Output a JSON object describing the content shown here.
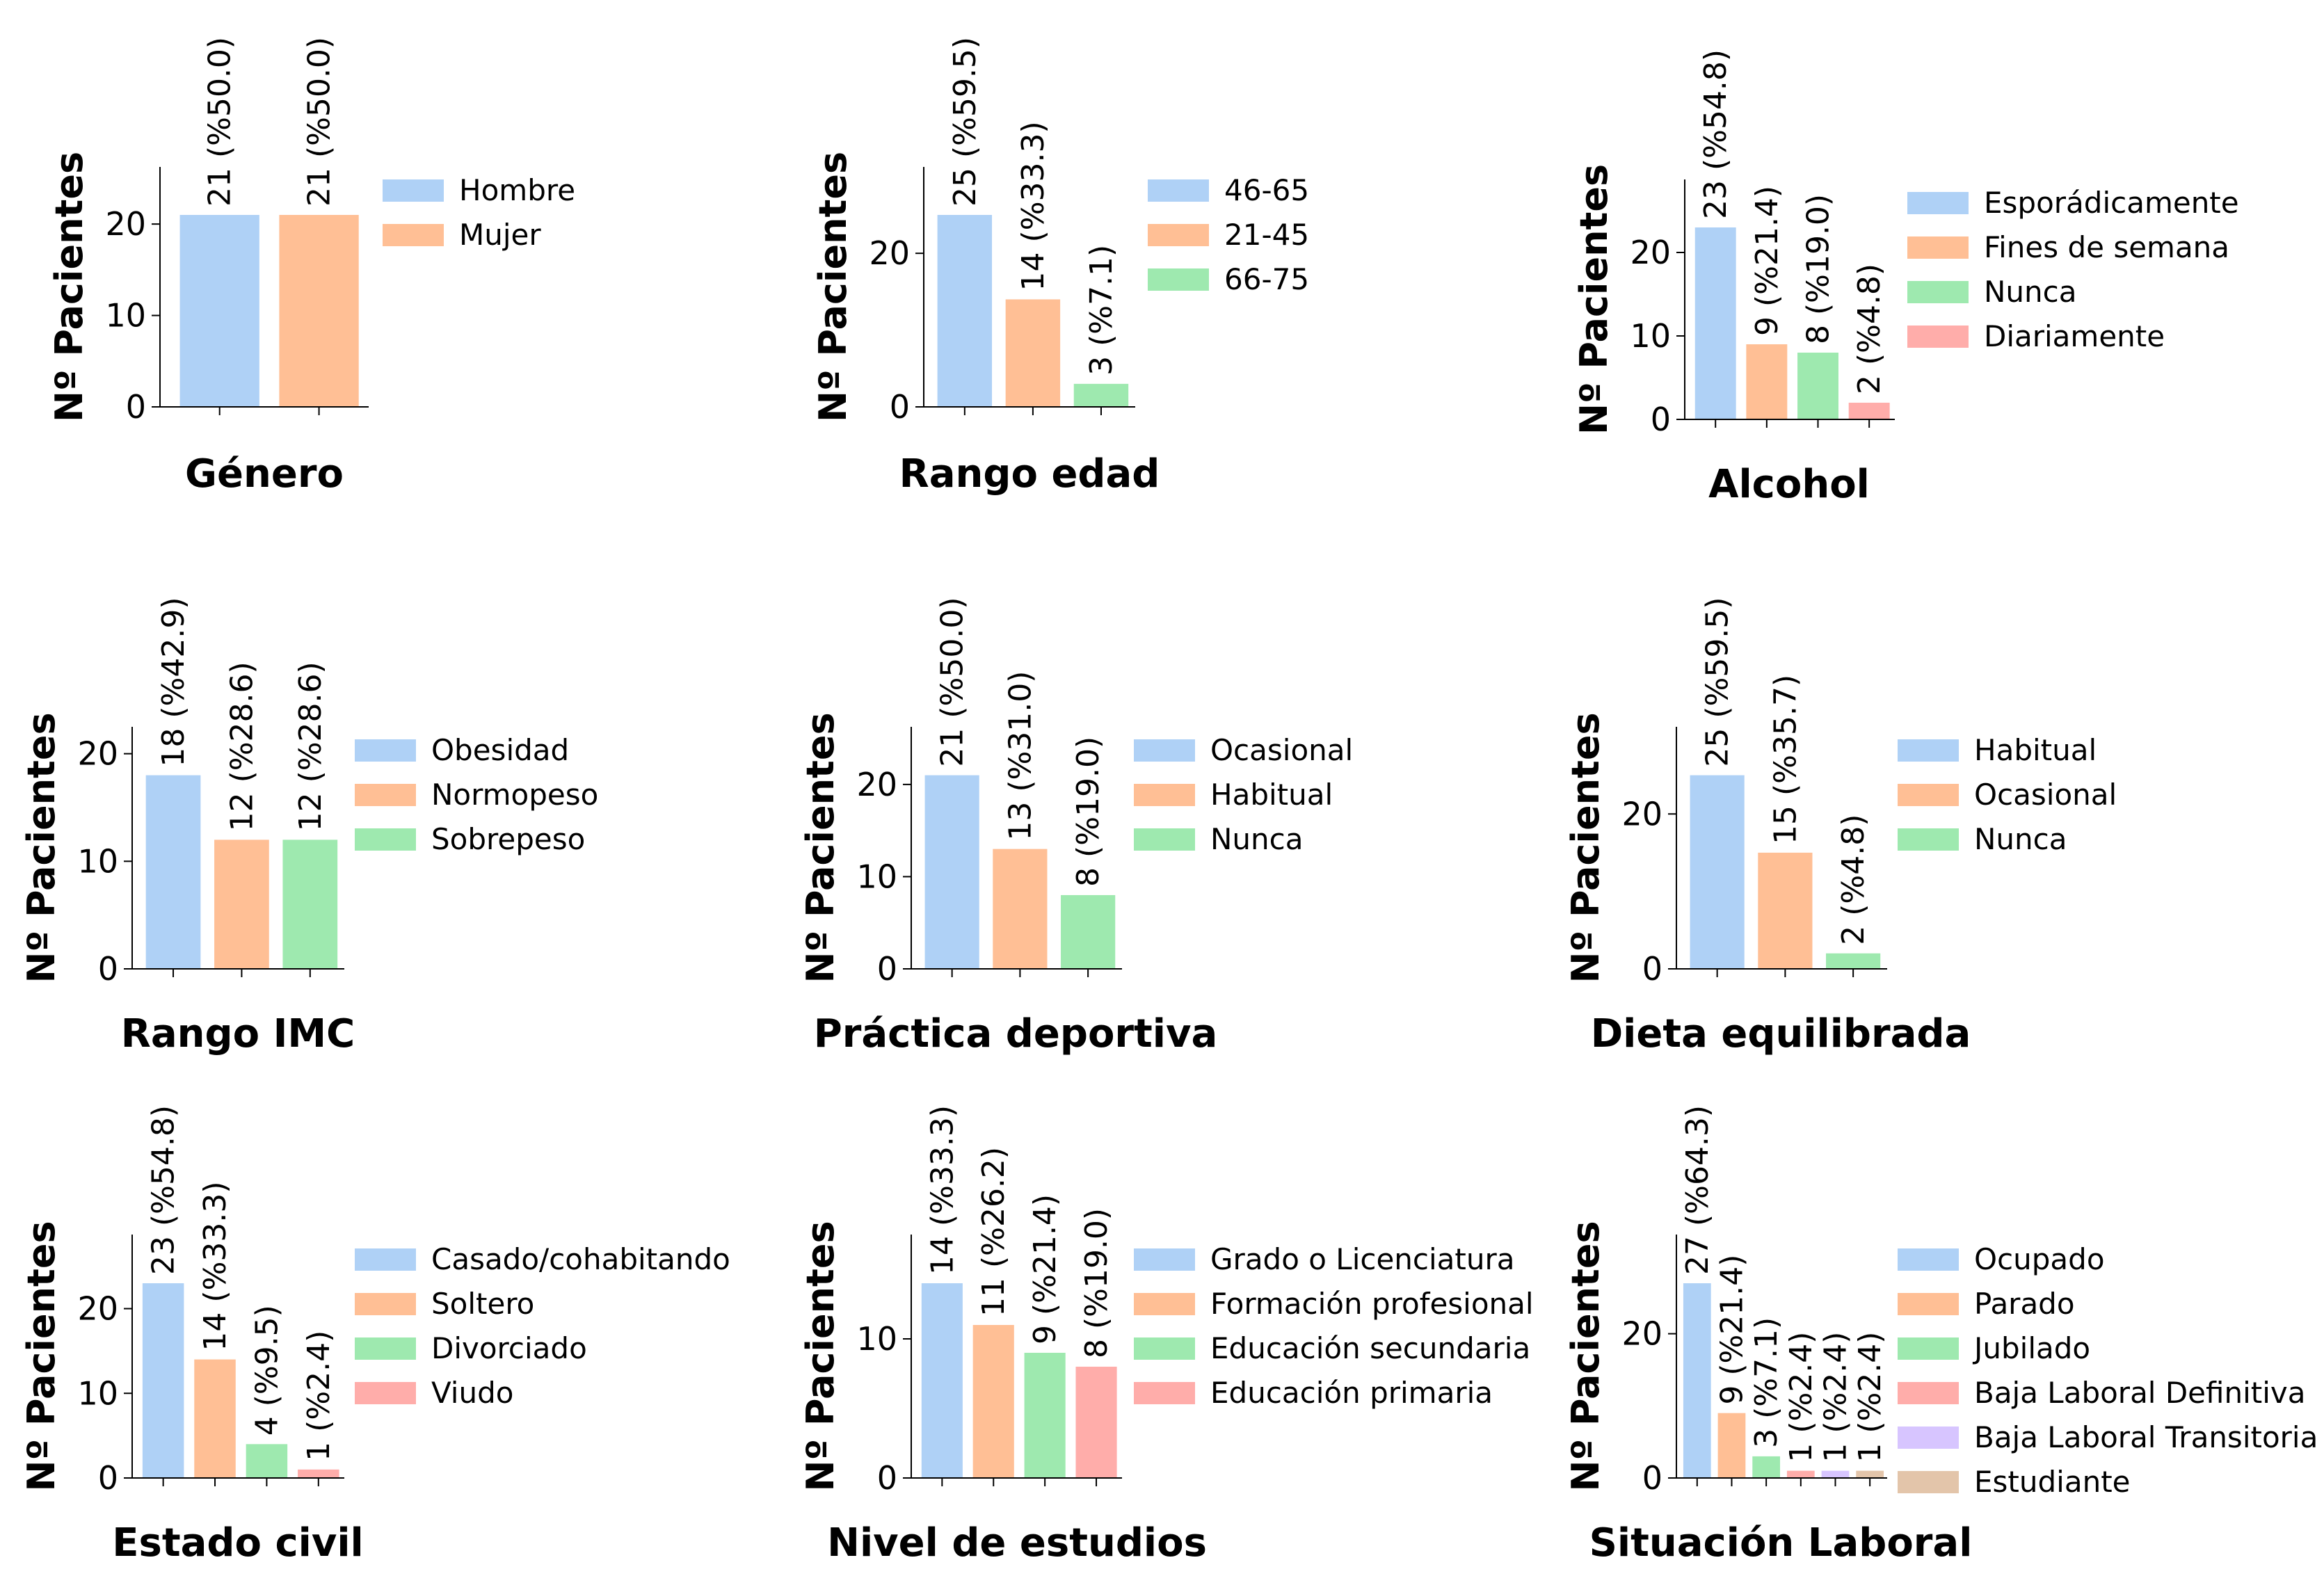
{
  "palette": [
    "#a1c9f4",
    "#ffb482",
    "#8de5a1",
    "#ff9f9b",
    "#d0bbff",
    "#debb9b"
  ],
  "chart_data": [
    {
      "type": "bar",
      "xlabel": "Género",
      "ylabel": "Nº Pacientes",
      "ylim": [
        0,
        26.25
      ],
      "yticks": [
        0,
        10,
        20
      ],
      "categories": [
        "Hombre",
        "Mujer"
      ],
      "values": [
        21,
        21
      ],
      "labels": [
        "21 (%50.0)",
        "21 (%50.0)"
      ],
      "legend": "right"
    },
    {
      "type": "bar",
      "xlabel": "Rango edad",
      "ylabel": "Nº Pacientes",
      "ylim": [
        0,
        31.25
      ],
      "yticks": [
        0,
        20
      ],
      "categories": [
        "46-65",
        "21-45",
        "66-75"
      ],
      "values": [
        25,
        14,
        3
      ],
      "labels": [
        "25 (%59.5)",
        "14 (%33.3)",
        "3 (%7.1)"
      ],
      "legend": "right"
    },
    {
      "type": "bar",
      "xlabel": "Alcohol",
      "ylabel": "Nº Pacientes",
      "ylim": [
        0,
        28.75
      ],
      "yticks": [
        0,
        10,
        20
      ],
      "categories": [
        "Esporádicamente",
        "Fines de semana",
        "Nunca",
        "Diariamente"
      ],
      "values": [
        23,
        9,
        8,
        2
      ],
      "labels": [
        "23 (%54.8)",
        "9 (%21.4)",
        "8 (%19.0)",
        "2 (%4.8)"
      ],
      "legend": "right"
    },
    {
      "type": "bar",
      "xlabel": "Rango IMC",
      "ylabel": "Nº Pacientes",
      "ylim": [
        0,
        22.5
      ],
      "yticks": [
        0,
        10,
        20
      ],
      "categories": [
        "Obesidad",
        "Normopeso",
        "Sobrepeso"
      ],
      "values": [
        18,
        12,
        12
      ],
      "labels": [
        "18 (%42.9)",
        "12 (%28.6)",
        "12 (%28.6)"
      ],
      "legend": "right"
    },
    {
      "type": "bar",
      "xlabel": "Práctica deportiva",
      "ylabel": "Nº Pacientes",
      "ylim": [
        0,
        26.25
      ],
      "yticks": [
        0,
        10,
        20
      ],
      "categories": [
        "Ocasional",
        "Habitual",
        "Nunca"
      ],
      "values": [
        21,
        13,
        8
      ],
      "labels": [
        "21 (%50.0)",
        "13 (%31.0)",
        "8 (%19.0)"
      ],
      "legend": "right"
    },
    {
      "type": "bar",
      "xlabel": "Dieta equilibrada",
      "ylabel": "Nº Pacientes",
      "ylim": [
        0,
        31.25
      ],
      "yticks": [
        0,
        20
      ],
      "categories": [
        "Habitual",
        "Ocasional",
        "Nunca"
      ],
      "values": [
        25,
        15,
        2
      ],
      "labels": [
        "25 (%59.5)",
        "15 (%35.7)",
        "2 (%4.8)"
      ],
      "legend": "right"
    },
    {
      "type": "bar",
      "xlabel": "Estado civil",
      "ylabel": "Nº Pacientes",
      "ylim": [
        0,
        28.75
      ],
      "yticks": [
        0,
        10,
        20
      ],
      "categories": [
        "Casado/cohabitando",
        "Soltero",
        "Divorciado",
        "Viudo"
      ],
      "values": [
        23,
        14,
        4,
        1
      ],
      "labels": [
        "23 (%54.8)",
        "14 (%33.3)",
        "4 (%9.5)",
        "1 (%2.4)"
      ],
      "legend": "right"
    },
    {
      "type": "bar",
      "xlabel": "Nivel de estudios",
      "ylabel": "Nº Pacientes",
      "ylim": [
        0,
        17.5
      ],
      "yticks": [
        0,
        10
      ],
      "categories": [
        "Grado o Licenciatura",
        "Formación profesional",
        "Educación secundaria",
        "Educación primaria"
      ],
      "values": [
        14,
        11,
        9,
        8
      ],
      "labels": [
        "14 (%33.3)",
        "11 (%26.2)",
        "9 (%21.4)",
        "8 (%19.0)"
      ],
      "legend": "right"
    },
    {
      "type": "bar",
      "xlabel": "Situación Laboral",
      "ylabel": "Nº Pacientes",
      "ylim": [
        0,
        33.75
      ],
      "yticks": [
        0,
        20
      ],
      "categories": [
        "Ocupado",
        "Parado",
        "Jubilado",
        "Baja Laboral Definitiva",
        "Baja Laboral Transitoria",
        "Estudiante"
      ],
      "values": [
        27,
        9,
        3,
        1,
        1,
        1
      ],
      "labels": [
        "27 (%64.3)",
        "9 (%21.4)",
        "3 (%7.1)",
        "1 (%2.4)",
        "1 (%2.4)",
        "1 (%2.4)"
      ],
      "legend": "right"
    }
  ]
}
